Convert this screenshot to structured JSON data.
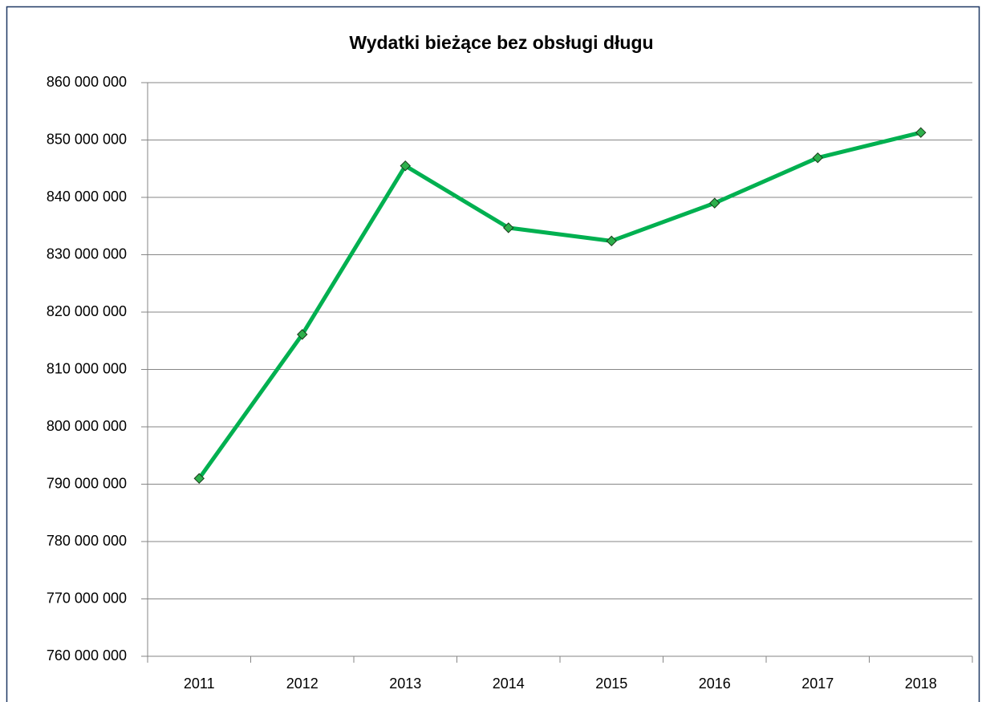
{
  "chart_data": {
    "type": "line",
    "title": "Wydatki bieżące bez obsługi długu",
    "categories": [
      "2011",
      "2012",
      "2013",
      "2014",
      "2015",
      "2016",
      "2017",
      "2018"
    ],
    "series": [
      {
        "name": "Wydatki bieżące bez obsługi długu",
        "color": "#00b050",
        "values": [
          791000000,
          816100000,
          845500000,
          834700000,
          832400000,
          839000000,
          846900000,
          851300000
        ]
      }
    ],
    "ylim": [
      760000000,
      860000000
    ],
    "yticks": [
      {
        "value": 760000000,
        "label": "760 000 000"
      },
      {
        "value": 770000000,
        "label": "770 000 000"
      },
      {
        "value": 780000000,
        "label": "780 000 000"
      },
      {
        "value": 790000000,
        "label": "790 000 000"
      },
      {
        "value": 800000000,
        "label": "800 000 000"
      },
      {
        "value": 810000000,
        "label": "810 000 000"
      },
      {
        "value": 820000000,
        "label": "820 000 000"
      },
      {
        "value": 830000000,
        "label": "830 000 000"
      },
      {
        "value": 840000000,
        "label": "840 000 000"
      },
      {
        "value": 850000000,
        "label": "850 000 000"
      },
      {
        "value": 860000000,
        "label": "860 000 000"
      }
    ],
    "grid": true,
    "marker_color": "#2eb04c"
  }
}
